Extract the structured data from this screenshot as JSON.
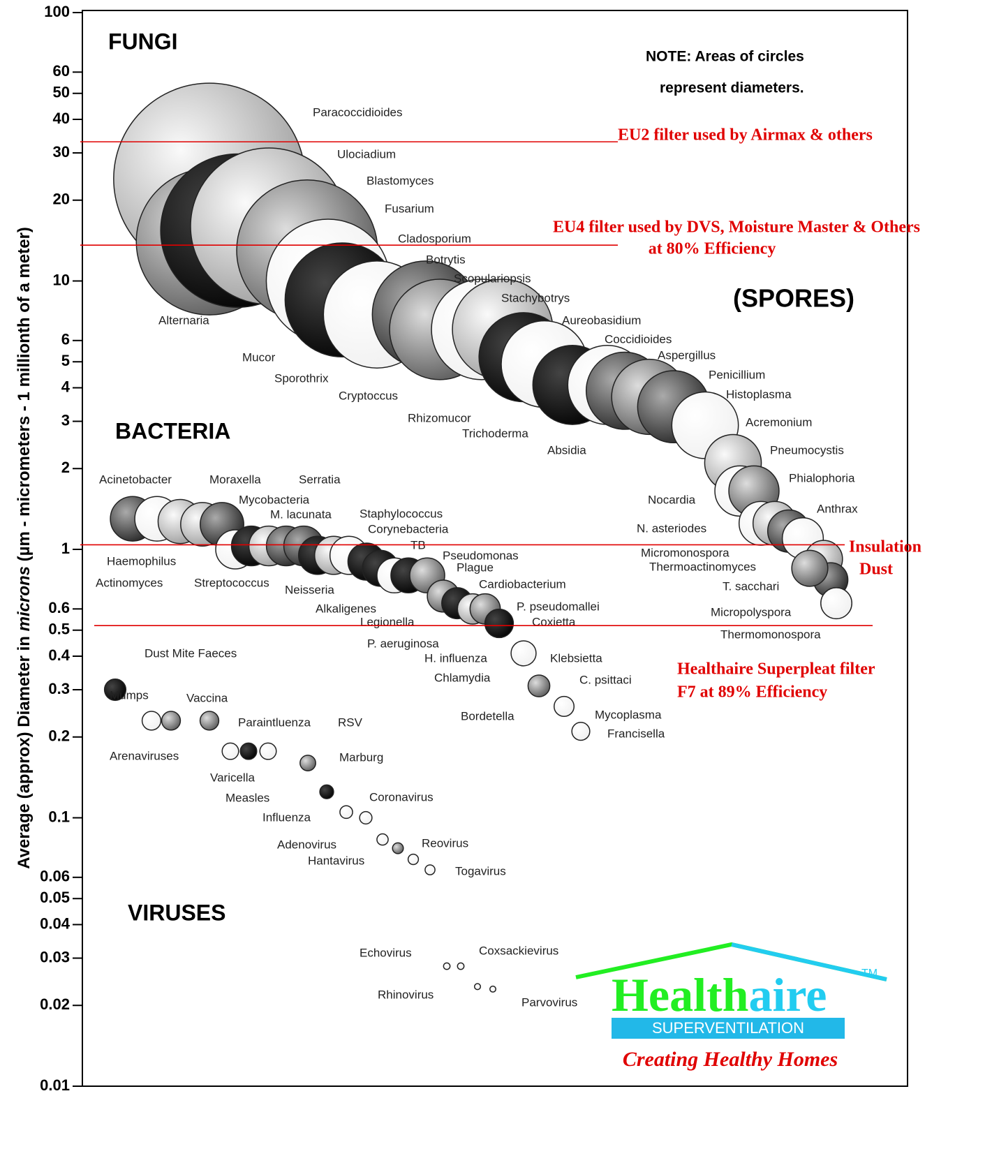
{
  "chart_data": {
    "type": "bubble",
    "y_label": [
      "Average (approx) Diameter in ",
      "microns",
      " (µm - micrometers - 1 millionth of a meter)"
    ],
    "ylim": [
      0.01,
      100
    ],
    "log_y": true,
    "yticks": [
      100,
      60,
      50,
      40,
      30,
      20,
      10,
      6,
      5,
      4,
      3,
      2,
      1,
      0.6,
      0.5,
      0.4,
      0.3,
      0.2,
      0.1,
      0.06,
      0.05,
      0.04,
      0.03,
      0.02,
      0.01
    ],
    "note": [
      "NOTE:  Areas of circles",
      "represent diameters."
    ],
    "spores_label": "(SPORES)",
    "series": [
      {
        "name": "FUNGI",
        "labels": [
          "Paracoccidioides",
          "Alternaria",
          "Ulociadium",
          "Blastomyces",
          "Fusarium",
          "Cladosporium",
          "Mucor",
          "Botrytis",
          "Sporothrix",
          "Scopulariopsis",
          "Cryptoccus",
          "Stachybotrys",
          "Rhizomucor",
          "Trichoderma",
          "Aureobasidium",
          "Absidia",
          "Coccidioides",
          "Aspergillus",
          "Penicillium",
          "Histoplasma",
          "Acremonium",
          "Nocardia",
          "Pneumocystis",
          "N. asteriodes",
          "Phialophoria",
          "Micromonospora",
          "Anthrax",
          "Thermoactinomyces",
          "T. sacchari",
          "Micropolyspora",
          "Thermomonospora"
        ],
        "values": [
          24,
          14,
          15.4,
          16,
          13,
          10,
          8.5,
          7.5,
          7.5,
          6.6,
          6.6,
          6.6,
          5.2,
          4.9,
          4.1,
          4.1,
          3.9,
          3.7,
          3.4,
          2.9,
          2.1,
          1.65,
          1.65,
          1.25,
          1.25,
          1.17,
          1.1,
          0.92,
          0.77,
          0.63,
          0.85
        ]
      },
      {
        "name": "BACTERIA",
        "labels": [
          "Acinetobacter",
          "Moraxella",
          "Serratia",
          "Mycobacteria",
          "M. lacunata",
          "Haemophilus",
          "Actinomyces",
          "Streptococcus",
          "Neisseria",
          "Staphylococcus",
          "Corynebacteria",
          "TB",
          "Pseudomonas",
          "Plague",
          "Cardiobacterium",
          "Alkaligenes",
          "Legionella",
          "P. pseudomallei",
          "P. aeruginosa",
          "Coxietta",
          "H. influenza",
          "Chlamydia",
          "Klebsietta",
          "C. psittaci",
          "Bordetella",
          "Mycoplasma",
          "Francisella",
          "Dust Mite Faeces"
        ],
        "values": [
          1.3,
          1.3,
          1.27,
          1.24,
          1.24,
          1.0,
          1.03,
          1.03,
          1.03,
          1.03,
          0.95,
          0.95,
          0.95,
          0.9,
          0.85,
          0.8,
          0.8,
          0.8,
          0.67,
          0.63,
          0.6,
          0.6,
          0.53,
          0.31,
          0.41,
          0.26,
          0.21,
          0.3
        ]
      },
      {
        "name": "VIRUSES",
        "labels": [
          "Mumps",
          "Vaccina",
          "Paraintluenza",
          "Arenaviruses",
          "Varicella",
          "RSV",
          "Marburg",
          "Measles",
          "Influenza",
          "Coronavirus",
          "Adenovirus",
          "Hantavirus",
          "Reovirus",
          "Togavirus",
          "Echovirus",
          "Coxsackievirus",
          "Rhinovirus",
          "Parvovirus"
        ],
        "values": [
          0.23,
          0.23,
          0.23,
          0.177,
          0.177,
          0.177,
          0.16,
          0.125,
          0.105,
          0.1,
          0.083,
          0.077,
          0.07,
          0.064,
          0.028,
          0.028,
          0.0235,
          0.023
        ]
      }
    ],
    "filters": [
      {
        "labels": [
          "EU2 filter used by Airmax & others"
        ],
        "value": 33,
        "color": "#e00000"
      },
      {
        "labels": [
          "EU4 filter used by DVS, Moisture Master & Others",
          "at 80% Efficiency"
        ],
        "value": 13.6,
        "color": "#e00000"
      },
      {
        "labels": [
          "Insulation",
          "Dust"
        ],
        "value": 1.04,
        "color": "#e00000"
      },
      {
        "labels": [
          "Healthaire Superpleat filter",
          "F7 at 89% Efficiency"
        ],
        "value": 0.52,
        "color": "#e00000"
      }
    ]
  },
  "logo": {
    "brand_1": "Health",
    "brand_2": "aire",
    "tm": "TM",
    "tagline": "SUPERVENTILATION",
    "slogan": "Creating Healthy Homes"
  }
}
